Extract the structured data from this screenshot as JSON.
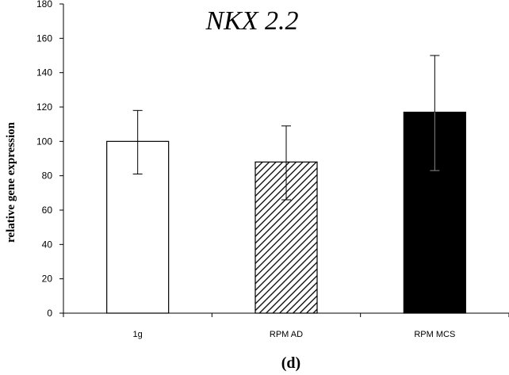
{
  "chart_data": {
    "type": "bar",
    "title": "NKX 2.2",
    "ylabel": "relative gene expression",
    "xlabel": "",
    "caption": "(d)",
    "categories": [
      "1g",
      "RPM AD",
      "RPM MCS"
    ],
    "values": [
      100,
      88,
      117
    ],
    "errors_low": [
      81,
      66,
      83
    ],
    "errors_high": [
      118,
      109,
      150
    ],
    "fills": [
      "white",
      "hatched",
      "black"
    ],
    "ylim": [
      0,
      180
    ],
    "yticks": [
      "0",
      "20",
      "40",
      "60",
      "80",
      "100",
      "120",
      "140",
      "160",
      "180"
    ],
    "grid": false,
    "legend": "none"
  }
}
